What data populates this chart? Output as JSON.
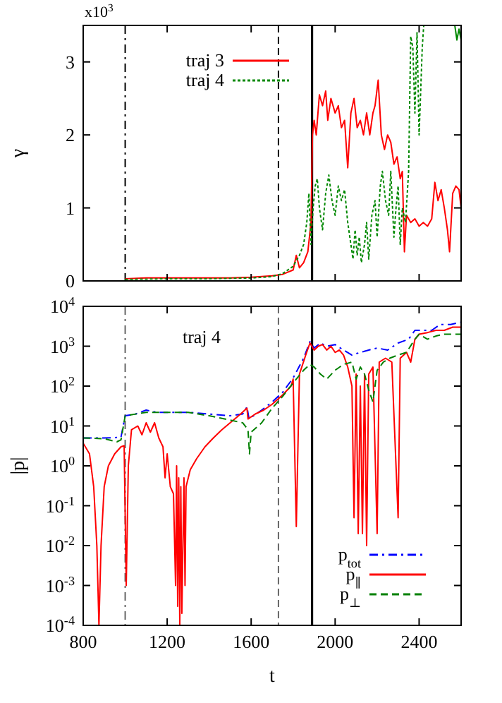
{
  "chart_data": [
    {
      "type": "line",
      "ylabel": "γ",
      "annotations": [
        "x10$^{3}$"
      ],
      "legend": "top left",
      "tick_labels": "y",
      "xlim": [
        800,
        2600
      ],
      "ylim": [
        0,
        3.5
      ],
      "yticks": [
        0,
        1,
        2,
        3
      ],
      "xticks": [
        800,
        1200,
        1600,
        2000,
        2400
      ],
      "ref_lines": [
        {
          "axis": "x",
          "value": 1000,
          "color": "#000000",
          "line_style": "dashdot"
        },
        {
          "axis": "x",
          "value": 1730,
          "color": "#000000",
          "line_style": "dashed"
        },
        {
          "axis": "x",
          "value": 1890,
          "color": "#000000",
          "line_style": "solid"
        }
      ],
      "series": [
        {
          "name": "traj 3",
          "color": "#ff0000",
          "line_style": "solid",
          "x": [
            1000,
            1100,
            1200,
            1300,
            1400,
            1500,
            1600,
            1700,
            1750,
            1800,
            1815,
            1830,
            1850,
            1870,
            1885,
            1892,
            1900,
            1910,
            1925,
            1940,
            1955,
            1965,
            1980,
            2000,
            2015,
            2030,
            2045,
            2060,
            2075,
            2090,
            2105,
            2120,
            2135,
            2150,
            2165,
            2180,
            2190,
            2205,
            2220,
            2235,
            2250,
            2265,
            2280,
            2295,
            2310,
            2320,
            2330,
            2340,
            2360,
            2380,
            2400,
            2420,
            2440,
            2460,
            2475,
            2490,
            2505,
            2520,
            2535,
            2545,
            2560,
            2575,
            2590,
            2600
          ],
          "values": [
            0.03,
            0.04,
            0.04,
            0.04,
            0.04,
            0.04,
            0.05,
            0.07,
            0.09,
            0.15,
            0.35,
            0.18,
            0.25,
            0.4,
            0.8,
            2.0,
            2.2,
            2.0,
            2.55,
            2.4,
            2.6,
            2.2,
            2.5,
            2.3,
            2.4,
            2.1,
            2.2,
            1.55,
            2.3,
            2.5,
            2.1,
            2.2,
            2.0,
            2.3,
            2.0,
            2.3,
            2.4,
            2.75,
            2.0,
            1.8,
            2.0,
            1.9,
            1.6,
            1.7,
            1.4,
            1.5,
            0.4,
            0.9,
            0.8,
            0.85,
            0.75,
            0.8,
            0.75,
            0.85,
            1.35,
            1.1,
            1.25,
            1.0,
            0.7,
            0.4,
            1.2,
            1.3,
            1.25,
            1.0
          ]
        },
        {
          "name": "traj 4",
          "color": "#008800",
          "line_style": "dotted",
          "x": [
            1000,
            1200,
            1400,
            1600,
            1700,
            1750,
            1800,
            1830,
            1850,
            1865,
            1875,
            1885,
            1895,
            1905,
            1915,
            1925,
            1940,
            1955,
            1970,
            1985,
            2000,
            2015,
            2030,
            2045,
            2060,
            2075,
            2085,
            2095,
            2105,
            2115,
            2125,
            2140,
            2150,
            2160,
            2175,
            2190,
            2200,
            2215,
            2225,
            2240,
            2255,
            2265,
            2280,
            2290,
            2300,
            2310,
            2320,
            2335,
            2350,
            2360,
            2370,
            2380,
            2390,
            2400,
            2415,
            2422
          ],
          "values": [
            0.02,
            0.03,
            0.03,
            0.04,
            0.06,
            0.1,
            0.2,
            0.35,
            0.5,
            0.8,
            1.2,
            0.5,
            1.0,
            1.3,
            1.4,
            1.0,
            0.7,
            1.2,
            1.45,
            1.1,
            0.9,
            1.3,
            1.1,
            1.25,
            0.8,
            0.5,
            0.3,
            0.7,
            0.35,
            0.6,
            0.25,
            0.5,
            0.8,
            0.3,
            0.9,
            1.1,
            0.6,
            1.3,
            1.5,
            1.1,
            0.9,
            1.5,
            0.6,
            1.0,
            1.3,
            0.5,
            1.0,
            0.8,
            1.5,
            3.35,
            3.2,
            2.3,
            3.4,
            2.0,
            3.2,
            3.5
          ]
        },
        {
          "color": "#008800",
          "line_style": "solid",
          "x": [
            2570,
            2580,
            2590,
            2600
          ],
          "values": [
            3.5,
            3.3,
            3.45,
            3.3
          ]
        }
      ]
    },
    {
      "type": "line",
      "xlabel": "t",
      "ylabel": "|p|",
      "annotations": [
        "traj 4"
      ],
      "legend": "bottom right",
      "log": "y",
      "xlim": [
        800,
        2600
      ],
      "xticks": [
        800,
        1200,
        1600,
        2000,
        2400
      ],
      "ylim": [
        0.0001,
        10000
      ],
      "yticks": [
        {
          "value": 0.0001,
          "label": "10$^{-4}$"
        },
        {
          "value": 0.001,
          "label": "10$^{-3}$"
        },
        {
          "value": 0.01,
          "label": "10$^{-2}$"
        },
        {
          "value": 0.1,
          "label": "10$^{-1}$"
        },
        {
          "value": 1,
          "label": "10$^{0}$"
        },
        {
          "value": 10,
          "label": "10$^{1}$"
        },
        {
          "value": 100,
          "label": "10$^{2}$"
        },
        {
          "value": 1000,
          "label": "10$^{3}$"
        },
        {
          "value": 10000,
          "label": "10$^{4}$"
        }
      ],
      "ref_lines": [
        {
          "axis": "x",
          "value": 1000,
          "color": "#666666",
          "line_style": "dashdot"
        },
        {
          "axis": "x",
          "value": 1730,
          "color": "#666666",
          "line_style": "dashed"
        },
        {
          "axis": "x",
          "value": 1890,
          "color": "#000000",
          "line_style": "solid"
        }
      ],
      "series": [
        {
          "name": "p$_{tot}$",
          "color": "#0000ff",
          "line_style": "dashdot",
          "x": [
            800,
            900,
            980,
            1000,
            1050,
            1100,
            1150,
            1200,
            1300,
            1400,
            1500,
            1560,
            1580,
            1590,
            1650,
            1700,
            1750,
            1800,
            1850,
            1880,
            1900,
            1930,
            1960,
            2000,
            2040,
            2080,
            2120,
            2160,
            2200,
            2250,
            2300,
            2350,
            2380,
            2420,
            2460,
            2500,
            2550,
            2600
          ],
          "values": [
            5,
            5,
            5.2,
            18,
            20,
            25,
            22,
            22,
            22,
            20,
            18,
            20,
            30,
            15,
            25,
            40,
            70,
            160,
            500,
            1300,
            900,
            1200,
            1000,
            1100,
            800,
            600,
            700,
            800,
            900,
            800,
            1200,
            1500,
            2500,
            2500,
            2500,
            3500,
            3500,
            4000
          ]
        },
        {
          "name": "p$_{∥}$",
          "color": "#ff0000",
          "line_style": "solid",
          "x": [
            800,
            830,
            850,
            865,
            875,
            885,
            900,
            920,
            950,
            980,
            995,
            1005,
            1015,
            1030,
            1060,
            1080,
            1100,
            1120,
            1140,
            1160,
            1180,
            1190,
            1200,
            1215,
            1230,
            1240,
            1245,
            1250,
            1255,
            1260,
            1265,
            1270,
            1280,
            1285,
            1290,
            1310,
            1340,
            1380,
            1420,
            1460,
            1500,
            1550,
            1580,
            1585,
            1620,
            1660,
            1700,
            1750,
            1790,
            1800,
            1815,
            1830,
            1860,
            1880,
            1900,
            1920,
            1940,
            1960,
            1980,
            2000,
            2020,
            2040,
            2060,
            2080,
            2090,
            2100,
            2110,
            2120,
            2130,
            2140,
            2150,
            2160,
            2180,
            2200,
            2210,
            2240,
            2270,
            2300,
            2310,
            2340,
            2360,
            2380,
            2400,
            2440,
            2480,
            2520,
            2560,
            2600
          ],
          "values": [
            3.7,
            2,
            0.3,
            0.01,
            0.0001,
            0.01,
            0.3,
            1,
            2,
            3,
            3.2,
            0.001,
            1,
            8,
            10,
            6,
            12,
            7,
            12,
            5,
            3,
            0.5,
            2,
            0.3,
            0.2,
            0.001,
            1,
            0.0003,
            0.5,
            0.0001,
            0.3,
            0.0002,
            0.5,
            0.001,
            0.3,
            0.8,
            1.5,
            3,
            5,
            8,
            12,
            20,
            28,
            15,
            20,
            25,
            35,
            60,
            100,
            150,
            0.03,
            200,
            600,
            1200,
            800,
            1000,
            1100,
            800,
            1000,
            700,
            800,
            600,
            300,
            100,
            0.05,
            200,
            0.02,
            100,
            0.02,
            200,
            0.01,
            200,
            300,
            0.02,
            400,
            500,
            400,
            0.05,
            500,
            700,
            400,
            1500,
            2000,
            2200,
            2500,
            2500,
            3000,
            3000
          ]
        },
        {
          "name": "p$_{⊥}$",
          "color": "#008000",
          "line_style": "dashed",
          "x": [
            800,
            900,
            960,
            980,
            1000,
            1100,
            1200,
            1300,
            1400,
            1500,
            1560,
            1585,
            1592,
            1600,
            1650,
            1700,
            1750,
            1800,
            1850,
            1880,
            1900,
            1930,
            1960,
            2000,
            2040,
            2080,
            2100,
            2120,
            2140,
            2160,
            2180,
            2200,
            2230,
            2260,
            2300,
            2340,
            2380,
            2400,
            2440,
            2480,
            2520,
            2600
          ],
          "values": [
            5,
            4.8,
            4,
            4.5,
            18,
            22,
            22,
            22,
            18,
            14,
            12,
            8,
            2,
            7,
            12,
            28,
            55,
            120,
            250,
            350,
            300,
            200,
            150,
            250,
            350,
            400,
            150,
            300,
            200,
            80,
            40,
            250,
            400,
            500,
            600,
            700,
            1500,
            2000,
            1500,
            1800,
            2000,
            2000
          ]
        }
      ]
    }
  ]
}
